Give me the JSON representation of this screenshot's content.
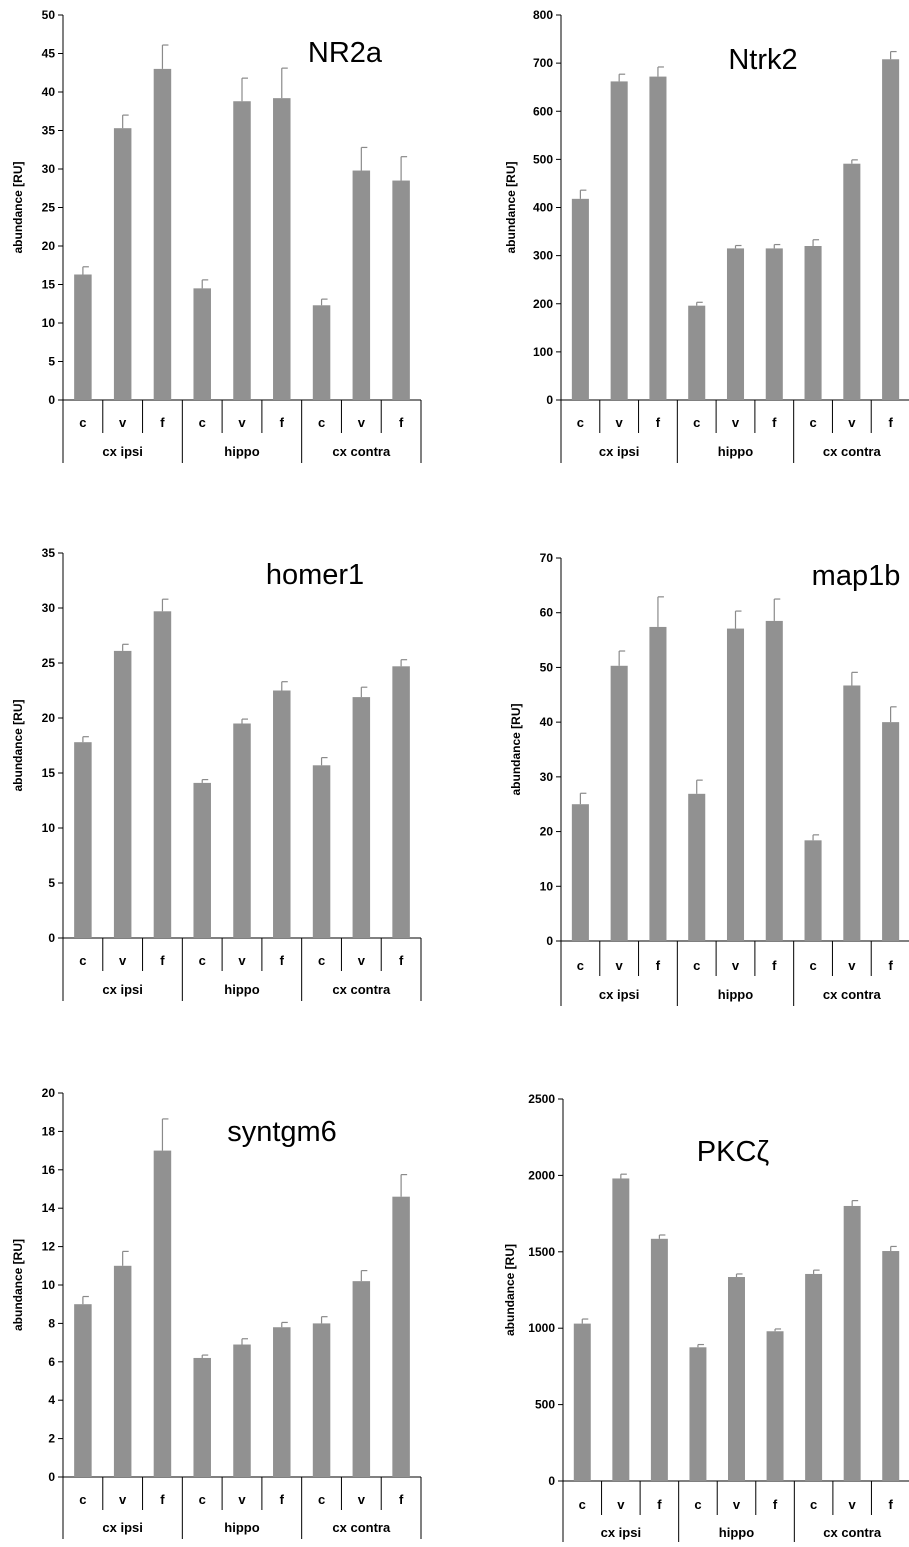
{
  "chart_data": [
    {
      "type": "bar",
      "title": "NR2a",
      "ylabel": "abundance [RU]",
      "ylim": [
        0,
        50
      ],
      "yticks": [
        0,
        5,
        10,
        15,
        20,
        25,
        30,
        35,
        40,
        45,
        50
      ],
      "categories": [
        "c",
        "v",
        "f",
        "c",
        "v",
        "f",
        "c",
        "v",
        "f"
      ],
      "groups": [
        "cx ipsi",
        "hippo",
        "cx contra"
      ],
      "values": [
        16.3,
        35.3,
        43.0,
        14.5,
        38.8,
        39.2,
        12.3,
        29.8,
        28.5
      ],
      "errors": [
        1.0,
        1.7,
        3.1,
        1.1,
        3.0,
        3.9,
        0.8,
        3.0,
        3.1
      ],
      "color": "#919191"
    },
    {
      "type": "bar",
      "title": "Ntrk2",
      "ylabel": "abundance [RU]",
      "ylim": [
        0,
        800
      ],
      "yticks": [
        0,
        100,
        200,
        300,
        400,
        500,
        600,
        700,
        800
      ],
      "categories": [
        "c",
        "v",
        "f",
        "c",
        "v",
        "f",
        "c",
        "v",
        "f"
      ],
      "groups": [
        "cx ipsi",
        "hippo",
        "cx contra"
      ],
      "values": [
        418,
        662,
        672,
        196,
        315,
        315,
        320,
        491,
        708
      ],
      "errors": [
        18,
        15,
        20,
        7,
        6,
        8,
        13,
        8,
        16
      ],
      "color": "#919191"
    },
    {
      "type": "bar",
      "title": "homer1",
      "ylabel": "abundance [RU]",
      "ylim": [
        0,
        35
      ],
      "yticks": [
        0,
        5,
        10,
        15,
        20,
        25,
        30,
        35
      ],
      "categories": [
        "c",
        "v",
        "f",
        "c",
        "v",
        "f",
        "c",
        "v",
        "f"
      ],
      "groups": [
        "cx ipsi",
        "hippo",
        "cx contra"
      ],
      "values": [
        17.8,
        26.1,
        29.7,
        14.1,
        19.5,
        22.5,
        15.7,
        21.9,
        24.7
      ],
      "errors": [
        0.5,
        0.6,
        1.1,
        0.3,
        0.4,
        0.8,
        0.7,
        0.9,
        0.6
      ],
      "color": "#919191"
    },
    {
      "type": "bar",
      "title": "map1b",
      "ylabel": "abundance [RU]",
      "ylim": [
        0,
        70
      ],
      "yticks": [
        0,
        10,
        20,
        30,
        40,
        50,
        60,
        70
      ],
      "categories": [
        "c",
        "v",
        "f",
        "c",
        "v",
        "f",
        "c",
        "v",
        "f"
      ],
      "groups": [
        "cx ipsi",
        "hippo",
        "cx contra"
      ],
      "values": [
        25.0,
        50.3,
        57.4,
        26.9,
        57.1,
        58.5,
        18.4,
        46.7,
        40.0
      ],
      "errors": [
        2.0,
        2.7,
        5.5,
        2.5,
        3.2,
        4.0,
        1.0,
        2.4,
        2.8
      ],
      "color": "#919191"
    },
    {
      "type": "bar",
      "title": "syntgm6",
      "ylabel": "abundance [RU]",
      "ylim": [
        0,
        20
      ],
      "yticks": [
        0,
        2,
        4,
        6,
        8,
        10,
        12,
        14,
        16,
        18,
        20
      ],
      "categories": [
        "c",
        "v",
        "f",
        "c",
        "v",
        "f",
        "c",
        "v",
        "f"
      ],
      "groups": [
        "cx ipsi",
        "hippo",
        "cx contra"
      ],
      "values": [
        9.0,
        11.0,
        17.0,
        6.2,
        6.9,
        7.8,
        8.0,
        10.2,
        14.6
      ],
      "errors": [
        0.4,
        0.75,
        1.65,
        0.15,
        0.3,
        0.25,
        0.35,
        0.55,
        1.15
      ],
      "color": "#919191"
    },
    {
      "type": "bar",
      "title": "PKCζ",
      "ylabel": "abundance [RU]",
      "ylim": [
        0,
        2500
      ],
      "yticks": [
        0,
        500,
        1000,
        1500,
        2000,
        2500
      ],
      "categories": [
        "c",
        "v",
        "f",
        "c",
        "v",
        "f",
        "c",
        "v",
        "f"
      ],
      "groups": [
        "cx ipsi",
        "hippo",
        "cx contra"
      ],
      "values": [
        1030,
        1980,
        1585,
        875,
        1335,
        980,
        1355,
        1800,
        1505
      ],
      "errors": [
        30,
        28,
        25,
        18,
        20,
        15,
        25,
        35,
        30
      ],
      "color": "#919191"
    }
  ]
}
